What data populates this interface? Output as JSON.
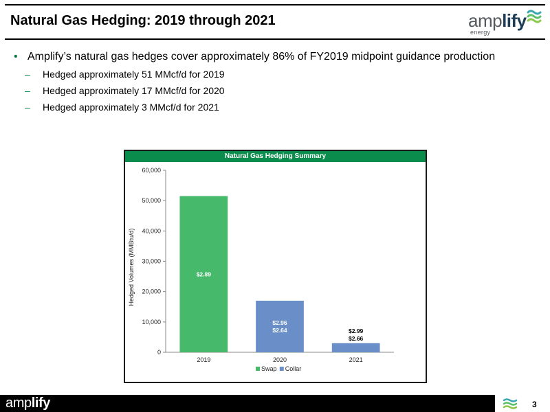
{
  "header": {
    "title": "Natural Gas Hedging: 2019 through 2021",
    "logo_word_light": "amp",
    "logo_word_dark": "lify",
    "logo_sub": "energy"
  },
  "bullets": {
    "main": "Amplify’s natural gas hedges cover approximately 86% of FY2019 midpoint guidance production",
    "subs": [
      "Hedged approximately 51 MMcf/d for 2019",
      "Hedged approximately 17 MMcf/d for 2020",
      "Hedged approximately 3 MMcf/d for 2021"
    ]
  },
  "chart_panel_title": "Natural Gas Hedging Summary",
  "chart_data": {
    "type": "bar",
    "stacked": true,
    "categories": [
      "2019",
      "2020",
      "2021"
    ],
    "series": [
      {
        "name": "Swap",
        "color": "#47b96b",
        "values": [
          51500,
          0,
          0
        ]
      },
      {
        "name": "Collar",
        "color": "#6a8fc8",
        "values": [
          0,
          17000,
          3000
        ]
      }
    ],
    "bar_labels": [
      [
        "$2.89"
      ],
      [
        "$2.96",
        "$2.64"
      ],
      [
        "$2.99",
        "$2.66"
      ]
    ],
    "ylabel": "Hedged Volumes (MMBtu/d)",
    "xlabel": "",
    "ylim": [
      0,
      60000
    ],
    "yticks": [
      "0",
      "10,000",
      "20,000",
      "30,000",
      "40,000",
      "50,000",
      "60,000"
    ],
    "legend": "bottom",
    "grid": false
  },
  "footer": {
    "brand_light": "amp",
    "brand_dark": "lify",
    "page_number": "3"
  }
}
